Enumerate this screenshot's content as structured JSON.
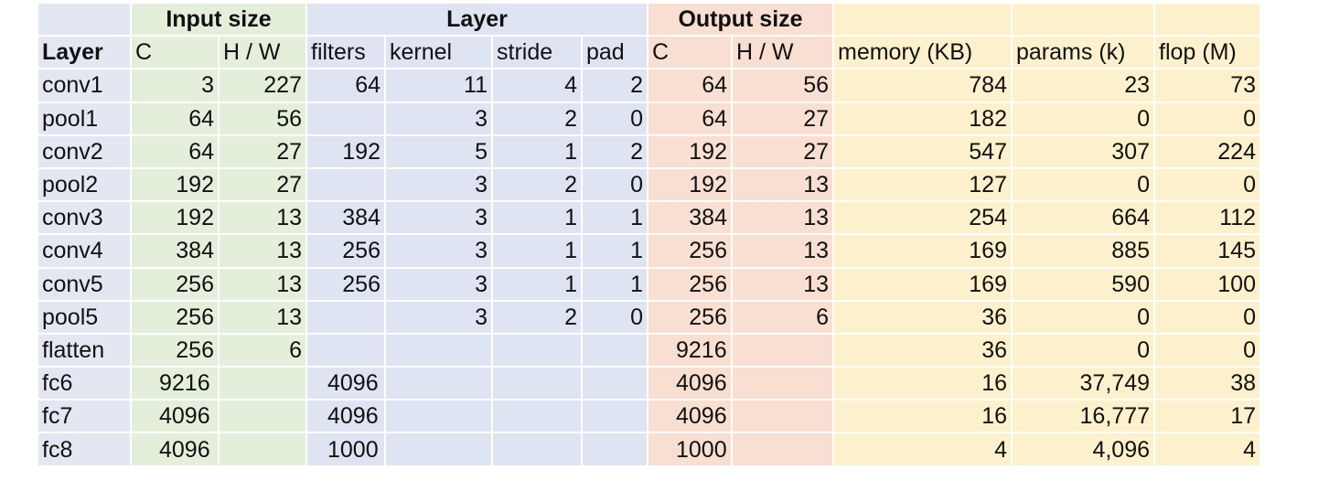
{
  "groups": {
    "input": "Input size",
    "layer": "Layer",
    "output": "Output size"
  },
  "headers": {
    "layer": "Layer",
    "in_c": "C",
    "in_hw": "H / W",
    "filters": "filters",
    "kernel": "kernel",
    "stride": "stride",
    "pad": "pad",
    "out_c": "C",
    "out_hw": "H / W",
    "memory": "memory (KB)",
    "params": "params (k)",
    "flop": "flop (M)"
  },
  "rows": [
    {
      "layer": "conv1",
      "in_c": "3",
      "in_hw": "227",
      "filters": "64",
      "kernel": "11",
      "stride": "4",
      "pad": "2",
      "out_c": "64",
      "out_hw": "56",
      "memory": "784",
      "params": "23",
      "flop": "73"
    },
    {
      "layer": "pool1",
      "in_c": "64",
      "in_hw": "56",
      "filters": "",
      "kernel": "3",
      "stride": "2",
      "pad": "0",
      "out_c": "64",
      "out_hw": "27",
      "memory": "182",
      "params": "0",
      "flop": "0"
    },
    {
      "layer": "conv2",
      "in_c": "64",
      "in_hw": "27",
      "filters": "192",
      "kernel": "5",
      "stride": "1",
      "pad": "2",
      "out_c": "192",
      "out_hw": "27",
      "memory": "547",
      "params": "307",
      "flop": "224"
    },
    {
      "layer": "pool2",
      "in_c": "192",
      "in_hw": "27",
      "filters": "",
      "kernel": "3",
      "stride": "2",
      "pad": "0",
      "out_c": "192",
      "out_hw": "13",
      "memory": "127",
      "params": "0",
      "flop": "0"
    },
    {
      "layer": "conv3",
      "in_c": "192",
      "in_hw": "13",
      "filters": "384",
      "kernel": "3",
      "stride": "1",
      "pad": "1",
      "out_c": "384",
      "out_hw": "13",
      "memory": "254",
      "params": "664",
      "flop": "112"
    },
    {
      "layer": "conv4",
      "in_c": "384",
      "in_hw": "13",
      "filters": "256",
      "kernel": "3",
      "stride": "1",
      "pad": "1",
      "out_c": "256",
      "out_hw": "13",
      "memory": "169",
      "params": "885",
      "flop": "145"
    },
    {
      "layer": "conv5",
      "in_c": "256",
      "in_hw": "13",
      "filters": "256",
      "kernel": "3",
      "stride": "1",
      "pad": "1",
      "out_c": "256",
      "out_hw": "13",
      "memory": "169",
      "params": "590",
      "flop": "100"
    },
    {
      "layer": "pool5",
      "in_c": "256",
      "in_hw": "13",
      "filters": "",
      "kernel": "3",
      "stride": "2",
      "pad": "0",
      "out_c": "256",
      "out_hw": "6",
      "memory": "36",
      "params": "0",
      "flop": "0"
    },
    {
      "layer": "flatten",
      "in_c": "256",
      "in_hw": "6",
      "filters": "",
      "kernel": "",
      "stride": "",
      "pad": "",
      "out_c": "9216",
      "out_hw": "",
      "memory": "36",
      "params": "0",
      "flop": "0"
    },
    {
      "layer": "fc6",
      "in_c": "9216",
      "in_hw": "",
      "filters": "4096",
      "kernel": "",
      "stride": "",
      "pad": "",
      "out_c": "4096",
      "out_hw": "",
      "memory": "16",
      "params": "37,749",
      "flop": "38"
    },
    {
      "layer": "fc7",
      "in_c": "4096",
      "in_hw": "",
      "filters": "4096",
      "kernel": "",
      "stride": "",
      "pad": "",
      "out_c": "4096",
      "out_hw": "",
      "memory": "16",
      "params": "16,777",
      "flop": "17"
    },
    {
      "layer": "fc8",
      "in_c": "4096",
      "in_hw": "",
      "filters": "1000",
      "kernel": "",
      "stride": "",
      "pad": "",
      "out_c": "1000",
      "out_hw": "",
      "memory": "4",
      "params": "4,096",
      "flop": "4"
    }
  ],
  "colors": {
    "layer_col": "#e3e7f2",
    "input": "#e4efdb",
    "layer": "#dfe4f3",
    "output": "#f8dfd2",
    "stats": "#fcf1cc"
  }
}
